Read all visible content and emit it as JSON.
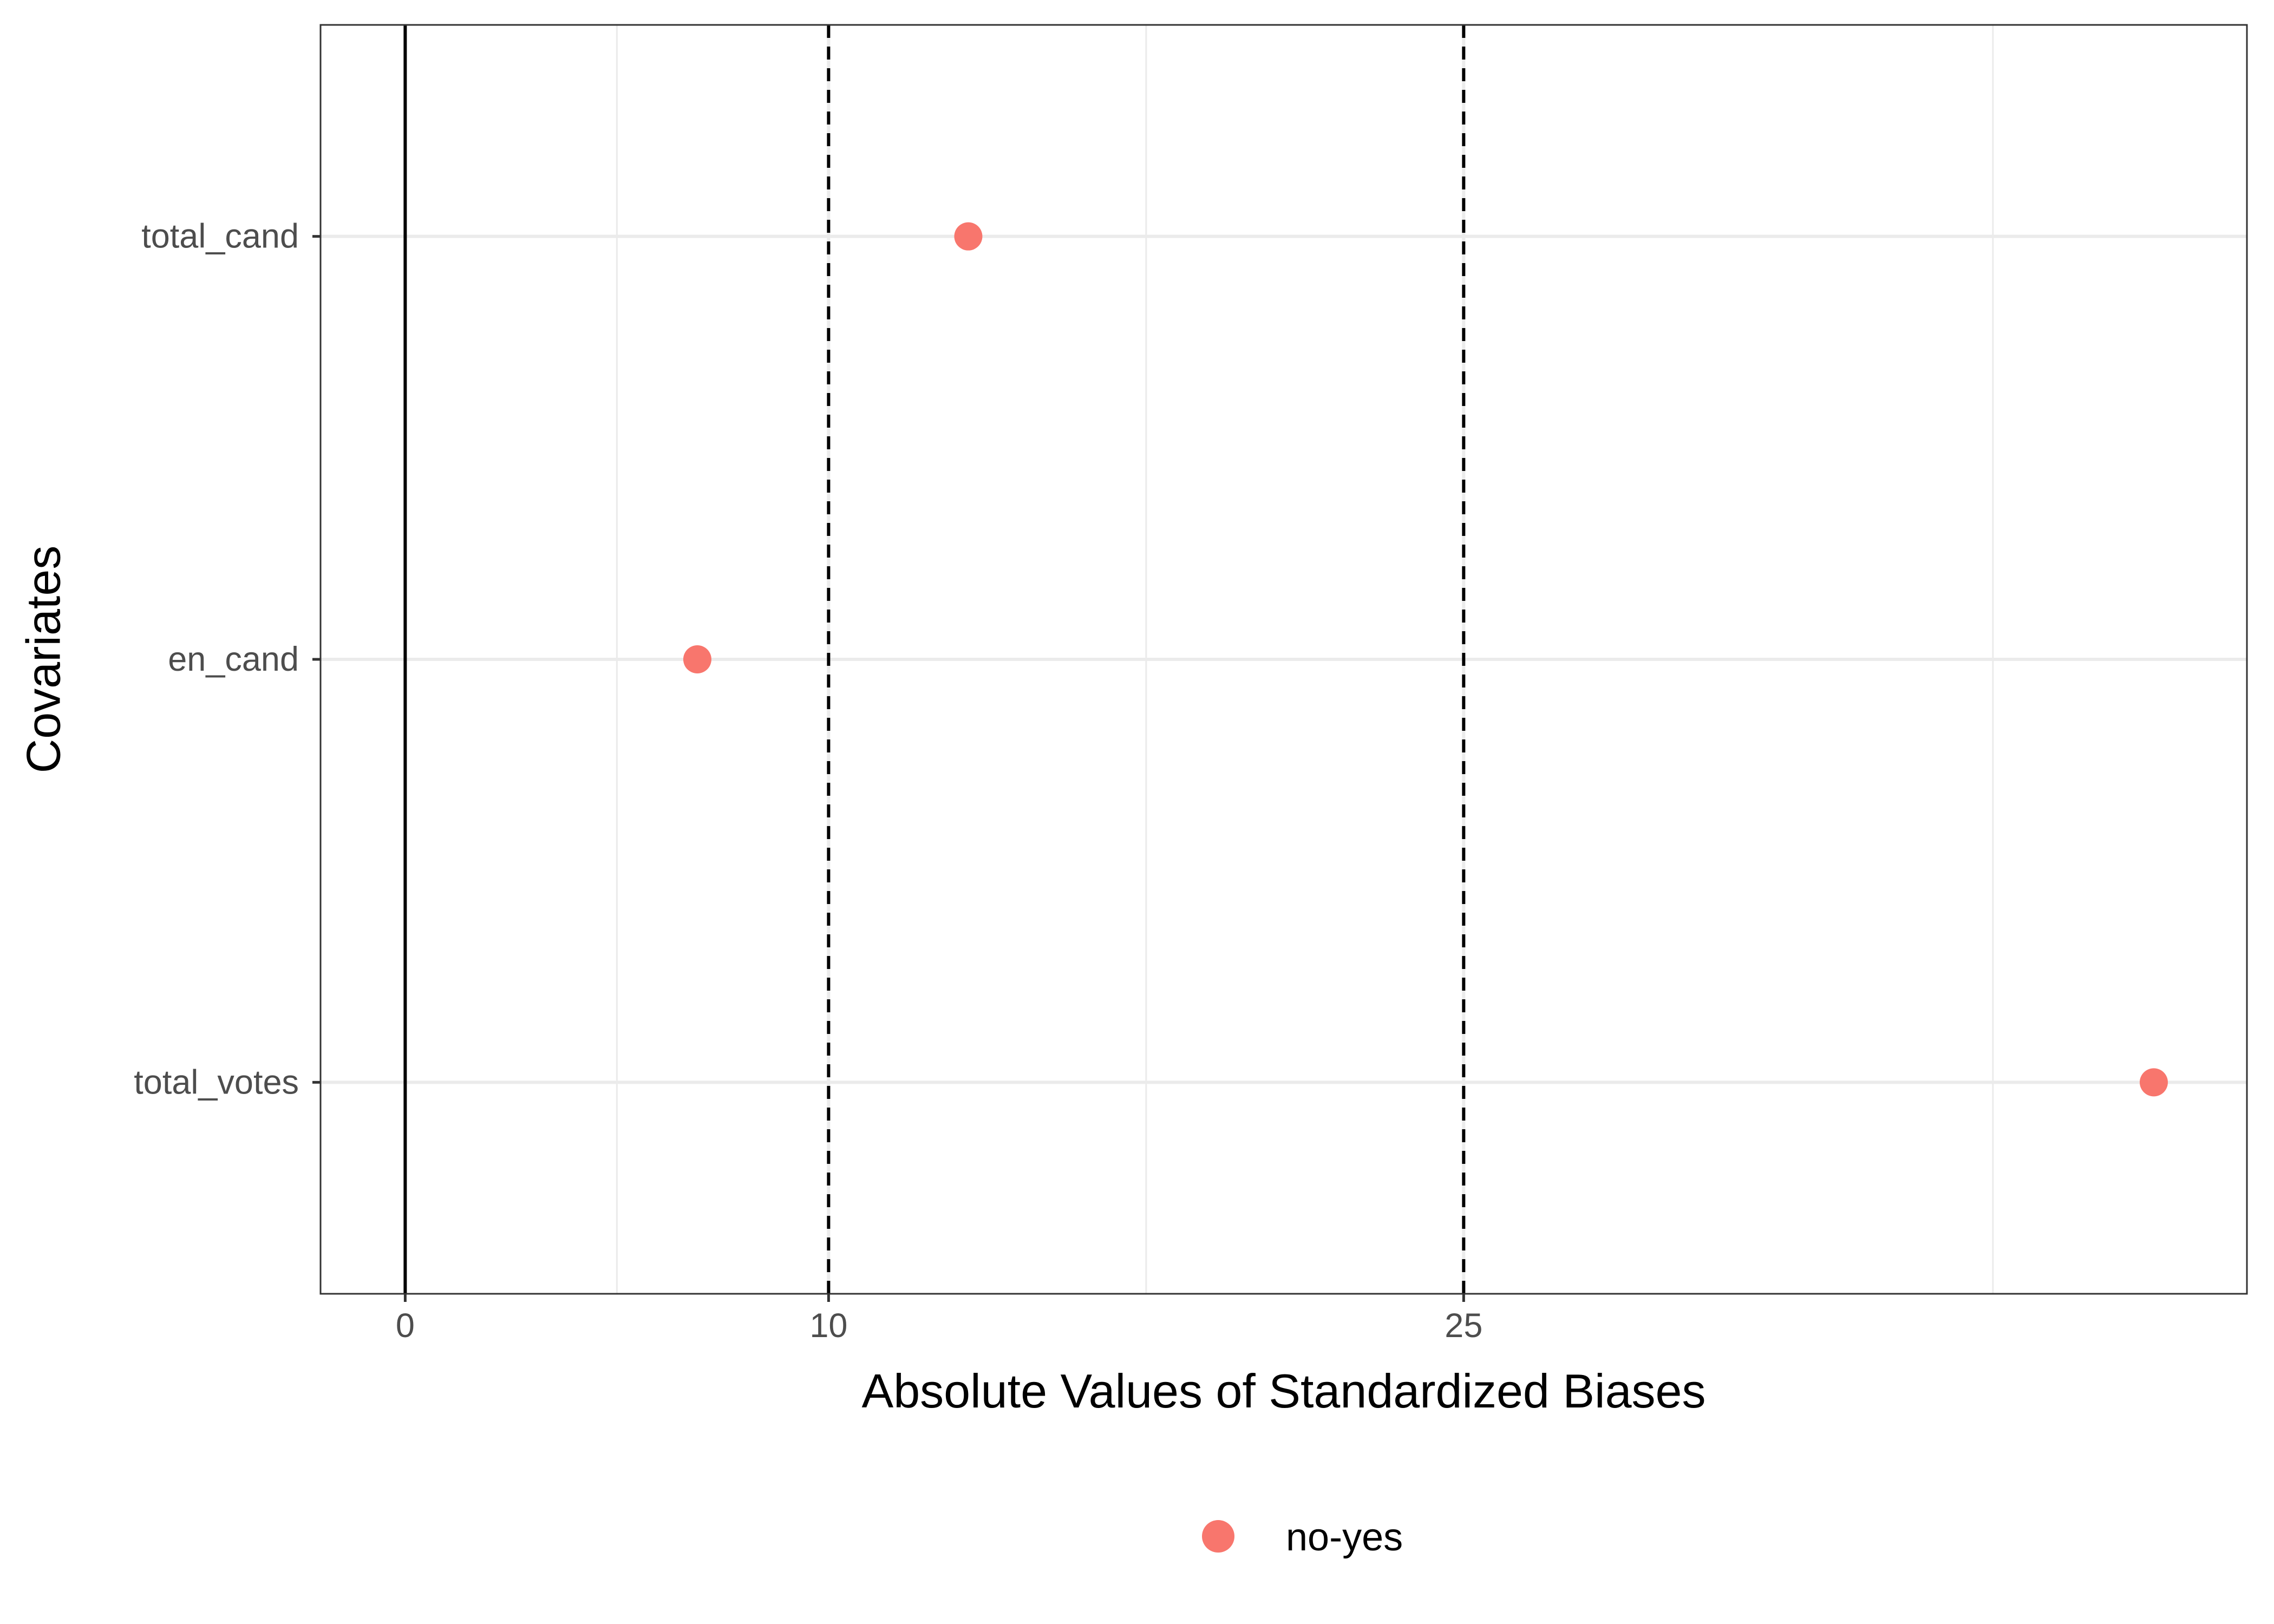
{
  "chart_data": {
    "type": "scatter",
    "xlabel": "Absolute Values of Standardized Biases",
    "ylabel": "Covariates",
    "xlim": [
      -2,
      43.5
    ],
    "x_ticks": [
      0,
      10,
      25
    ],
    "x_tick_labels": [
      "0",
      "10",
      "25"
    ],
    "x_minor_gridlines": [
      5,
      17.5,
      37.5
    ],
    "x_major_gridlines": [
      0,
      10,
      25
    ],
    "categories": [
      "total_cand",
      "en_cand",
      "total_votes"
    ],
    "series": [
      {
        "name": "no-yes",
        "color": "#F8766D",
        "points": [
          {
            "category": "total_cand",
            "x": 13.3
          },
          {
            "category": "en_cand",
            "x": 6.9
          },
          {
            "category": "total_votes",
            "x": 41.3
          }
        ]
      }
    ],
    "reference_lines": [
      {
        "x": 0,
        "style": "solid",
        "color": "#000000"
      },
      {
        "x": 10,
        "style": "dashed",
        "color": "#000000"
      },
      {
        "x": 25,
        "style": "dashed",
        "color": "#000000"
      }
    ],
    "grid": true,
    "legend_position": "bottom",
    "legend_entries": [
      "no-yes"
    ]
  }
}
